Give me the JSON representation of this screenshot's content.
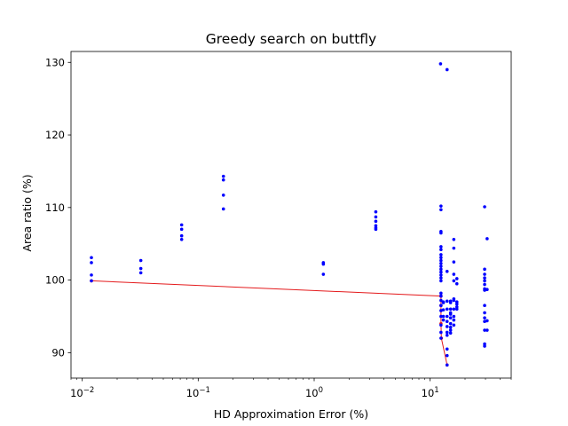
{
  "chart_data": {
    "type": "scatter",
    "title": "Greedy search on buttfly",
    "xlabel": "HD Approximation Error (%)",
    "ylabel": "Area ratio (%)",
    "xscale": "log",
    "xlim": [
      0.008,
      50
    ],
    "ylim": [
      86.5,
      131.5
    ],
    "grid": false,
    "colors": {
      "points": "#0000ff",
      "line": "#e41a1c"
    },
    "x_ticks": [
      {
        "value": 0.01,
        "base": "10",
        "exp": "−2"
      },
      {
        "value": 0.1,
        "base": "10",
        "exp": "−1"
      },
      {
        "value": 1,
        "base": "10",
        "exp": "0"
      },
      {
        "value": 10,
        "base": "10",
        "exp": "1"
      }
    ],
    "y_ticks": [
      {
        "value": 90,
        "label": "90"
      },
      {
        "value": 100,
        "label": "100"
      },
      {
        "value": 110,
        "label": "110"
      },
      {
        "value": 120,
        "label": "120"
      },
      {
        "value": 130,
        "label": "130"
      }
    ],
    "series": [
      {
        "kind": "scatter",
        "x": [
          0.012,
          0.012,
          0.012,
          0.012,
          0.032,
          0.032,
          0.032,
          0.072,
          0.072,
          0.072,
          0.072,
          0.165,
          0.165,
          0.165,
          0.165,
          1.2,
          1.2,
          1.2,
          3.4,
          3.4,
          3.4,
          3.4,
          3.4,
          3.4,
          12.4,
          12.4,
          12.4,
          12.4,
          12.4,
          12.4,
          12.4,
          12.4,
          12.4,
          12.4,
          12.4,
          12.4,
          12.4,
          12.4,
          12.4,
          12.4,
          12.4,
          12.4,
          12.4,
          12.4,
          12.4,
          12.4,
          12.4,
          12.4,
          12.4,
          13.0,
          13.0,
          13.0,
          13.0,
          13.0,
          14.0,
          14.0,
          14.0,
          14.0,
          14.0,
          14.0,
          14.0,
          14.0,
          14.0,
          14.0,
          14.0,
          14.0,
          15.0,
          15.0,
          15.0,
          15.0,
          15.0,
          15.0,
          15.0,
          15.0,
          15.0,
          15.0,
          16.0,
          16.0,
          16.0,
          16.0,
          16.0,
          16.0,
          16.0,
          16.0,
          16.0,
          16.0,
          16.0,
          17.0,
          17.0,
          17.0,
          17.0,
          17.0,
          17.0,
          29.5,
          29.5,
          29.5,
          29.5,
          29.5,
          29.5,
          29.5,
          29.5,
          29.5,
          29.5,
          29.5,
          29.5,
          29.5,
          29.5,
          29.5,
          31.0,
          31.0,
          31.0,
          31.0
        ],
        "y": [
          103.1,
          102.4,
          100.7,
          99.9,
          102.7,
          101.6,
          101.0,
          107.6,
          107.0,
          106.1,
          105.6,
          114.3,
          113.8,
          111.7,
          109.8,
          102.4,
          102.2,
          100.8,
          109.4,
          108.7,
          108.1,
          107.5,
          107.2,
          107.0,
          110.2,
          109.7,
          106.7,
          106.5,
          104.6,
          104.2,
          103.5,
          103.1,
          102.7,
          102.3,
          101.9,
          101.5,
          101.1,
          100.7,
          100.3,
          99.9,
          98.2,
          97.8,
          97.2,
          96.5,
          95.8,
          95.0,
          93.8,
          92.8,
          92.0,
          96.9,
          95.9,
          95.0,
          94.5,
          97.0,
          129.0,
          101.2,
          97.1,
          96.0,
          95.0,
          94.3,
          93.6,
          92.8,
          92.4,
          90.5,
          89.6,
          88.3,
          96.9,
          96.0,
          95.3,
          94.8,
          94.0,
          93.5,
          93.1,
          92.7,
          97.1,
          95.5,
          105.6,
          104.4,
          102.5,
          100.8,
          99.9,
          97.2,
          96.0,
          95.0,
          93.8,
          94.5,
          97.4,
          100.2,
          99.5,
          97.0,
          96.7,
          96.3,
          96.0,
          110.1,
          101.5,
          100.8,
          100.3,
          99.9,
          99.4,
          98.8,
          98.6,
          96.5,
          95.5,
          94.8,
          94.3,
          93.1,
          91.2,
          90.9,
          105.7,
          98.7,
          94.4,
          93.1
        ]
      },
      {
        "kind": "line",
        "x": [
          0.012,
          12.4,
          12.4,
          12.4,
          12.5,
          14.0
        ],
        "y": [
          99.9,
          97.8,
          96.5,
          94.0,
          92.0,
          88.3
        ]
      }
    ],
    "extra_points": {
      "x": [
        12.3
      ],
      "y": [
        129.8
      ]
    }
  }
}
